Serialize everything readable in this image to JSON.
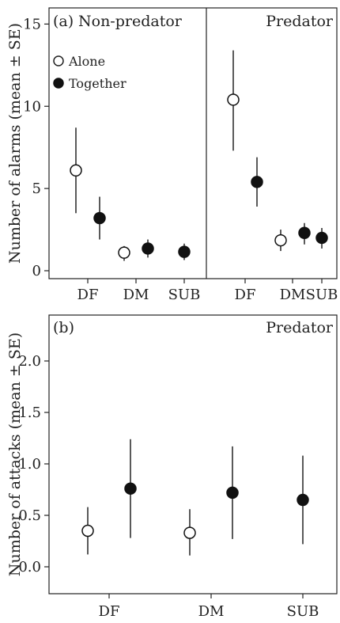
{
  "chart_data": [
    {
      "type": "scatter",
      "panel": "(a)",
      "ylabel": "Number of alarms (mean ± SE)",
      "ylim": [
        0,
        15.5
      ],
      "yticks": [
        0,
        5,
        10,
        15
      ],
      "legend": {
        "placement": "top-left",
        "entries": [
          {
            "label": "Alone",
            "marker": "open-circle"
          },
          {
            "label": "Together",
            "marker": "filled-circle"
          }
        ]
      },
      "sections": [
        {
          "name": "Non-predator",
          "categories": [
            "DF",
            "DM",
            "SUB"
          ],
          "series": [
            {
              "name": "Alone",
              "points": [
                {
                  "category": "DF",
                  "y": 6.1,
                  "lower": 3.5,
                  "upper": 8.7
                },
                {
                  "category": "DM",
                  "y": 1.1,
                  "lower": 0.6,
                  "upper": 1.5
                }
              ]
            },
            {
              "name": "Together",
              "points": [
                {
                  "category": "DF",
                  "y": 3.2,
                  "lower": 1.9,
                  "upper": 4.5
                },
                {
                  "category": "DM",
                  "y": 1.35,
                  "lower": 0.8,
                  "upper": 1.9
                },
                {
                  "category": "SUB",
                  "y": 1.15,
                  "lower": 0.65,
                  "upper": 1.65
                }
              ]
            }
          ]
        },
        {
          "name": "Predator",
          "categories": [
            "DF",
            "DM",
            "SUB"
          ],
          "series": [
            {
              "name": "Alone",
              "points": [
                {
                  "category": "DF",
                  "y": 10.4,
                  "lower": 7.3,
                  "upper": 13.4
                },
                {
                  "category": "DM",
                  "y": 1.85,
                  "lower": 1.2,
                  "upper": 2.5
                }
              ]
            },
            {
              "name": "Together",
              "points": [
                {
                  "category": "DF",
                  "y": 5.4,
                  "lower": 3.9,
                  "upper": 6.9
                },
                {
                  "category": "DM",
                  "y": 2.3,
                  "lower": 1.6,
                  "upper": 2.9
                },
                {
                  "category": "SUB",
                  "y": 2.0,
                  "lower": 1.35,
                  "upper": 2.6
                }
              ]
            }
          ]
        }
      ]
    },
    {
      "type": "scatter",
      "panel": "(b)",
      "title": "Predator",
      "ylabel": "Number of attacks (mean ± SE)",
      "ylim": [
        -0.05,
        2.05
      ],
      "yticks": [
        "0.0",
        "0.5",
        "1.0",
        "1.5",
        "2.0"
      ],
      "categories": [
        "DF",
        "DM",
        "SUB"
      ],
      "series": [
        {
          "name": "Alone",
          "points": [
            {
              "category": "DF",
              "y": 0.35,
              "lower": 0.12,
              "upper": 0.58
            },
            {
              "category": "DM",
              "y": 0.33,
              "lower": 0.11,
              "upper": 0.56
            }
          ]
        },
        {
          "name": "Together",
          "points": [
            {
              "category": "DF",
              "y": 0.76,
              "lower": 0.28,
              "upper": 1.24
            },
            {
              "category": "DM",
              "y": 0.72,
              "lower": 0.27,
              "upper": 1.17
            },
            {
              "category": "SUB",
              "y": 0.65,
              "lower": 0.22,
              "upper": 1.08
            }
          ]
        }
      ]
    }
  ]
}
